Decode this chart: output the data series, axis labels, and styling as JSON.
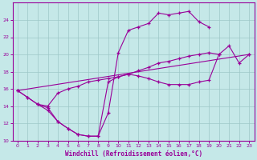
{
  "xlabel": "Windchill (Refroidissement éolien,°C)",
  "xlim": [
    -0.5,
    23.5
  ],
  "ylim": [
    10,
    26
  ],
  "yticks": [
    10,
    12,
    14,
    16,
    18,
    20,
    22,
    24
  ],
  "xticks": [
    0,
    1,
    2,
    3,
    4,
    5,
    6,
    7,
    8,
    9,
    10,
    11,
    12,
    13,
    14,
    15,
    16,
    17,
    18,
    19,
    20,
    21,
    22,
    23
  ],
  "bg_color": "#c5e8e8",
  "line_color": "#990099",
  "grid_color": "#9dc8c8",
  "line1_x": [
    0,
    1,
    2,
    3,
    4,
    5,
    6,
    7,
    8,
    9,
    10,
    11,
    12,
    13,
    14,
    15,
    16,
    17,
    18,
    19,
    20,
    21,
    22,
    23
  ],
  "line1_y": [
    15.8,
    15.0,
    14.2,
    13.8,
    12.2,
    11.4,
    10.7,
    10.5,
    10.5,
    13.2,
    20.2,
    22.8,
    23.2,
    23.6,
    24.8,
    24.6,
    24.8,
    25.0,
    23.8,
    23.2,
    null,
    null,
    null,
    null
  ],
  "line2_x": [
    0,
    1,
    2,
    3,
    4,
    5,
    6,
    7,
    8,
    9,
    10,
    11,
    12,
    13,
    14,
    15,
    16,
    17,
    18,
    19,
    20,
    21,
    22,
    23
  ],
  "line2_y": [
    15.8,
    null,
    null,
    null,
    null,
    null,
    null,
    null,
    null,
    null,
    null,
    null,
    null,
    null,
    null,
    null,
    null,
    null,
    null,
    null,
    20.0,
    null,
    null,
    20.0
  ],
  "line3_x": [
    0,
    1,
    2,
    3,
    4,
    5,
    6,
    7,
    8,
    9,
    10,
    11,
    12,
    13,
    14,
    15,
    16,
    17,
    18,
    19,
    20,
    21,
    22,
    23
  ],
  "line3_y": [
    15.8,
    15.0,
    14.2,
    14.0,
    15.5,
    16.0,
    16.3,
    16.8,
    17.0,
    17.2,
    17.4,
    17.7,
    18.1,
    18.5,
    19.0,
    19.2,
    19.5,
    19.8,
    20.0,
    20.2,
    20.0,
    null,
    null,
    null
  ],
  "line4_x": [
    2,
    3,
    4,
    5,
    6,
    7,
    8,
    9,
    10,
    11,
    12,
    13,
    14,
    15,
    16,
    17,
    18,
    19,
    20,
    21,
    22,
    23
  ],
  "line4_y": [
    14.2,
    13.5,
    12.2,
    11.4,
    10.7,
    10.5,
    10.5,
    16.8,
    17.4,
    17.7,
    17.5,
    17.2,
    16.8,
    16.5,
    16.5,
    16.5,
    16.8,
    17.0,
    20.0,
    21.0,
    19.0,
    20.0
  ]
}
